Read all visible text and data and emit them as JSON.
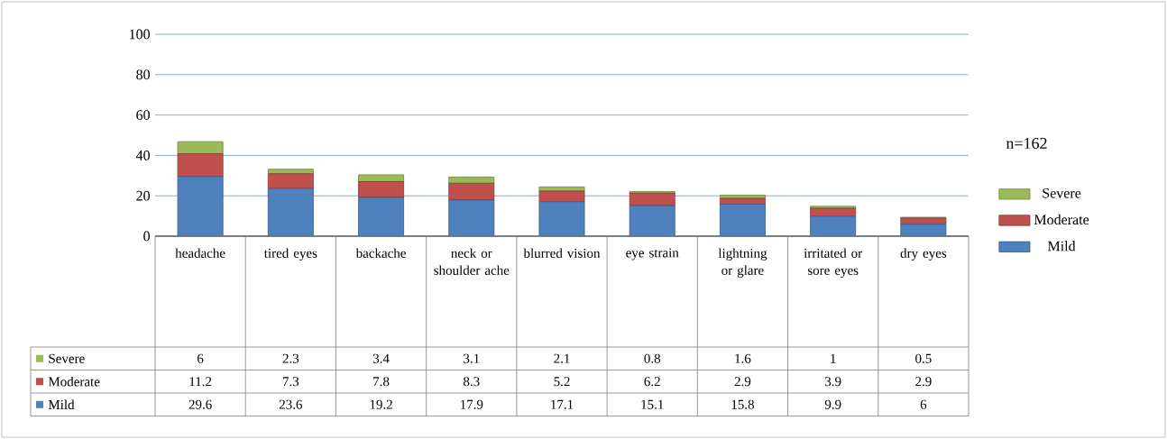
{
  "chart_data": {
    "type": "bar",
    "stacked": true,
    "categories": [
      "headache",
      "tired eyes",
      "backache",
      "neck or shoulder ache",
      "blurred vision",
      "eye strain",
      "lightning or glare",
      "irritated or sore eyes",
      "dry eyes"
    ],
    "series": [
      {
        "name": "Mild",
        "color": "#4f81bd",
        "values": [
          29.6,
          23.6,
          19.2,
          17.9,
          17.1,
          15.1,
          15.8,
          9.9,
          6
        ]
      },
      {
        "name": "Moderate",
        "color": "#c0504d",
        "values": [
          11.2,
          7.3,
          7.8,
          8.3,
          5.2,
          6.2,
          2.9,
          3.9,
          2.9
        ]
      },
      {
        "name": "Severe",
        "color": "#9bbb59",
        "values": [
          6,
          2.3,
          3.4,
          3.1,
          2.1,
          0.8,
          1.6,
          1,
          0.5
        ]
      }
    ],
    "ylim": [
      0,
      100
    ],
    "yticks": [
      0,
      20,
      40,
      60,
      80,
      100
    ],
    "grid": "y",
    "legend": "right",
    "data_labels": true,
    "annotations": [
      "n=162"
    ]
  }
}
